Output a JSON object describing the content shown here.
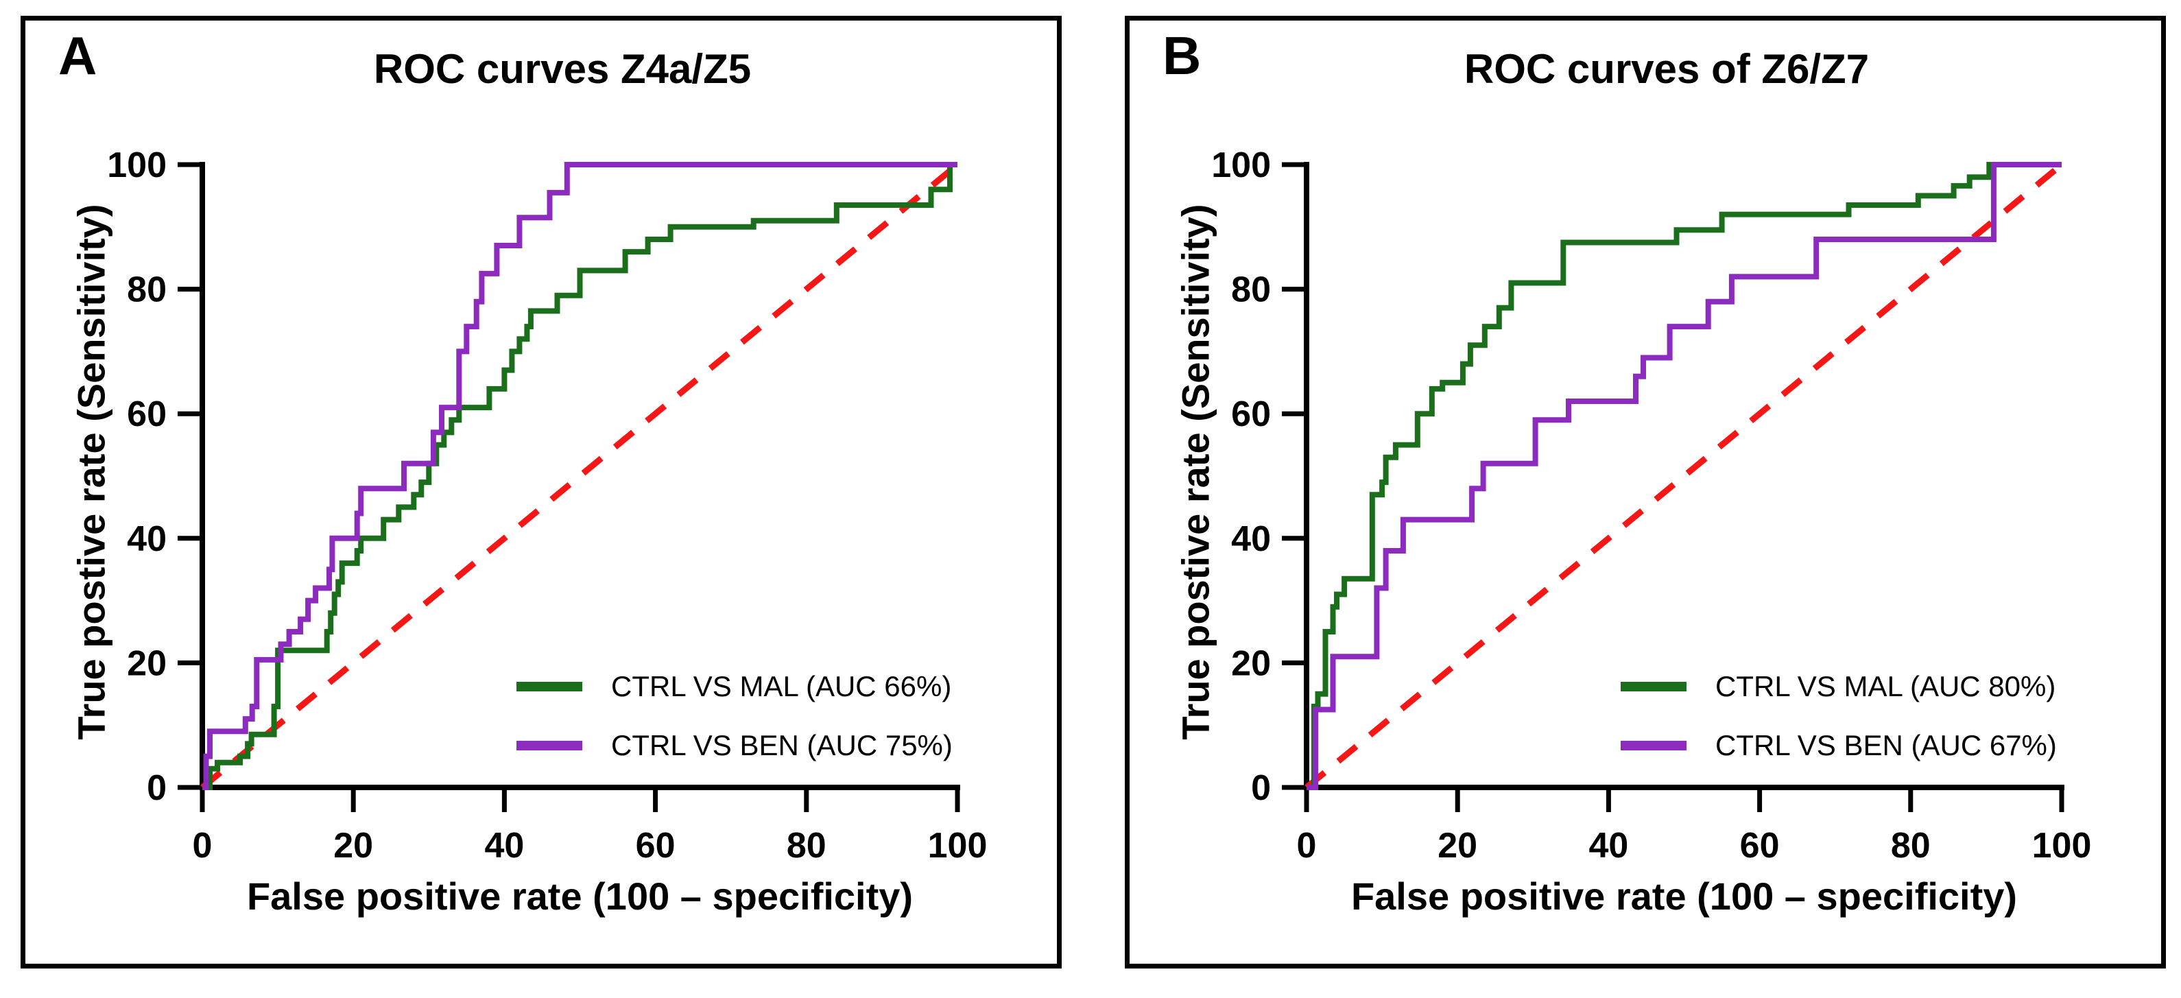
{
  "figure": {
    "background_color": "#ffffff",
    "frame_color": "#000000",
    "diagonal_color": "#f51616",
    "green_color": "#1b6e1b",
    "purple_color": "#8d2bbf"
  },
  "chart_data": [
    {
      "type": "line",
      "panel_label": "A",
      "title": "ROC curves Z4a/Z5",
      "xlabel": "False positive rate (100 – specificity)",
      "ylabel": "True postive rate (Sensitivity)",
      "xlim": [
        0,
        100
      ],
      "ylim": [
        0,
        100
      ],
      "xticks": [
        0,
        20,
        40,
        60,
        80,
        100
      ],
      "yticks": [
        0,
        20,
        40,
        60,
        80,
        100
      ],
      "grid": false,
      "legend_position": "lower right",
      "diagonal": {
        "name": "chance-line",
        "style": "dashed",
        "color": "#f51616",
        "from": [
          0,
          0
        ],
        "to": [
          100,
          100
        ]
      },
      "series": [
        {
          "name": "CTRL VS MAL (AUC 66%)",
          "color": "#1b6e1b",
          "step": true,
          "points": [
            [
              0,
              0
            ],
            [
              1,
              0
            ],
            [
              1,
              3
            ],
            [
              2,
              3
            ],
            [
              2,
              4
            ],
            [
              5,
              4
            ],
            [
              5,
              5
            ],
            [
              6,
              5
            ],
            [
              6,
              7
            ],
            [
              6.5,
              7
            ],
            [
              6.5,
              8.5
            ],
            [
              9.5,
              8.5
            ],
            [
              9.5,
              13
            ],
            [
              10,
              13
            ],
            [
              10,
              22
            ],
            [
              16.5,
              22
            ],
            [
              16.5,
              25
            ],
            [
              17,
              25
            ],
            [
              17,
              28
            ],
            [
              17.5,
              28
            ],
            [
              17.5,
              31
            ],
            [
              18,
              31
            ],
            [
              18,
              33
            ],
            [
              18.5,
              33
            ],
            [
              18.5,
              36
            ],
            [
              20.5,
              36
            ],
            [
              20.5,
              38
            ],
            [
              21,
              38
            ],
            [
              21,
              40
            ],
            [
              24,
              40
            ],
            [
              24,
              43
            ],
            [
              26,
              43
            ],
            [
              26,
              45
            ],
            [
              28,
              45
            ],
            [
              28,
              47
            ],
            [
              29,
              47
            ],
            [
              29,
              49
            ],
            [
              30,
              49
            ],
            [
              30,
              52
            ],
            [
              31,
              52
            ],
            [
              31,
              55
            ],
            [
              32,
              55
            ],
            [
              32,
              57
            ],
            [
              33,
              57
            ],
            [
              33,
              59
            ],
            [
              34,
              59
            ],
            [
              34,
              61
            ],
            [
              38,
              61
            ],
            [
              38,
              64
            ],
            [
              40,
              64
            ],
            [
              40,
              67
            ],
            [
              41,
              67
            ],
            [
              41,
              70
            ],
            [
              42,
              70
            ],
            [
              42,
              72
            ],
            [
              43,
              72
            ],
            [
              43,
              74
            ],
            [
              43.5,
              74
            ],
            [
              43.5,
              76.5
            ],
            [
              47,
              76.5
            ],
            [
              47,
              79
            ],
            [
              50,
              79
            ],
            [
              50,
              83
            ],
            [
              56,
              83
            ],
            [
              56,
              86
            ],
            [
              59,
              86
            ],
            [
              59,
              88
            ],
            [
              62,
              88
            ],
            [
              62,
              90
            ],
            [
              73,
              90
            ],
            [
              73,
              91
            ],
            [
              84,
              91
            ],
            [
              84,
              93.5
            ],
            [
              96.5,
              93.5
            ],
            [
              96.5,
              96
            ],
            [
              99,
              96
            ],
            [
              99,
              100
            ],
            [
              100,
              100
            ]
          ]
        },
        {
          "name": "CTRL VS BEN (AUC 75%)",
          "color": "#8d2bbf",
          "step": true,
          "points": [
            [
              0,
              0
            ],
            [
              0.5,
              0
            ],
            [
              0.5,
              5
            ],
            [
              1,
              5
            ],
            [
              1,
              9
            ],
            [
              5.7,
              9
            ],
            [
              5.7,
              11
            ],
            [
              6.6,
              11
            ],
            [
              6.6,
              13
            ],
            [
              7.2,
              13
            ],
            [
              7.2,
              20.5
            ],
            [
              10.4,
              20.5
            ],
            [
              10.4,
              23
            ],
            [
              11.5,
              23
            ],
            [
              11.5,
              25
            ],
            [
              13,
              25
            ],
            [
              13,
              27
            ],
            [
              14,
              27
            ],
            [
              14,
              30
            ],
            [
              15,
              30
            ],
            [
              15,
              32
            ],
            [
              16.8,
              32
            ],
            [
              16.8,
              35
            ],
            [
              17.2,
              35
            ],
            [
              17.2,
              40
            ],
            [
              20.5,
              40
            ],
            [
              20.5,
              44
            ],
            [
              21,
              44
            ],
            [
              21,
              48
            ],
            [
              26.7,
              48
            ],
            [
              26.7,
              52
            ],
            [
              30.6,
              52
            ],
            [
              30.6,
              57
            ],
            [
              31.7,
              57
            ],
            [
              31.7,
              61
            ],
            [
              34,
              61
            ],
            [
              34,
              70
            ],
            [
              35,
              70
            ],
            [
              35,
              74
            ],
            [
              36.3,
              74
            ],
            [
              36.3,
              78
            ],
            [
              37,
              78
            ],
            [
              37,
              82.5
            ],
            [
              39,
              82.5
            ],
            [
              39,
              87
            ],
            [
              42,
              87
            ],
            [
              42,
              91.5
            ],
            [
              46,
              91.5
            ],
            [
              46,
              95.5
            ],
            [
              48.3,
              95.5
            ],
            [
              48.3,
              100
            ],
            [
              100,
              100
            ]
          ]
        }
      ]
    },
    {
      "type": "line",
      "panel_label": "B",
      "title": "ROC curves of Z6/Z7",
      "xlabel": "False positive rate (100 – specificity)",
      "ylabel": "True postive rate (Sensitivity)",
      "xlim": [
        0,
        100
      ],
      "ylim": [
        0,
        100
      ],
      "xticks": [
        0,
        20,
        40,
        60,
        80,
        100
      ],
      "yticks": [
        0,
        20,
        40,
        60,
        80,
        100
      ],
      "grid": false,
      "legend_position": "lower right",
      "diagonal": {
        "name": "chance-line",
        "style": "dashed",
        "color": "#f51616",
        "from": [
          0,
          0
        ],
        "to": [
          100,
          100
        ]
      },
      "series": [
        {
          "name": "CTRL VS MAL (AUC 80%)",
          "color": "#1b6e1b",
          "step": true,
          "points": [
            [
              0,
              0
            ],
            [
              1,
              0
            ],
            [
              1,
              13
            ],
            [
              1.5,
              13
            ],
            [
              1.5,
              15
            ],
            [
              2.5,
              15
            ],
            [
              2.5,
              25
            ],
            [
              3.5,
              25
            ],
            [
              3.5,
              29
            ],
            [
              4,
              29
            ],
            [
              4,
              31
            ],
            [
              5,
              31
            ],
            [
              5,
              33.5
            ],
            [
              8.7,
              33.5
            ],
            [
              8.7,
              47
            ],
            [
              10,
              47
            ],
            [
              10,
              49
            ],
            [
              10.5,
              49
            ],
            [
              10.5,
              53
            ],
            [
              11.8,
              53
            ],
            [
              11.8,
              55
            ],
            [
              14.7,
              55
            ],
            [
              14.7,
              60
            ],
            [
              16.6,
              60
            ],
            [
              16.6,
              64
            ],
            [
              18,
              64
            ],
            [
              18,
              65
            ],
            [
              20.7,
              65
            ],
            [
              20.7,
              68
            ],
            [
              21.7,
              68
            ],
            [
              21.7,
              71
            ],
            [
              23.6,
              71
            ],
            [
              23.6,
              74
            ],
            [
              25.5,
              74
            ],
            [
              25.5,
              77
            ],
            [
              27.1,
              77
            ],
            [
              27.1,
              81
            ],
            [
              34,
              81
            ],
            [
              34,
              87.5
            ],
            [
              49,
              87.5
            ],
            [
              49,
              89.5
            ],
            [
              55,
              89.5
            ],
            [
              55,
              92
            ],
            [
              71.8,
              92
            ],
            [
              71.8,
              93.5
            ],
            [
              81,
              93.5
            ],
            [
              81,
              95
            ],
            [
              85.7,
              95
            ],
            [
              85.7,
              96.6
            ],
            [
              87.8,
              96.6
            ],
            [
              87.8,
              98
            ],
            [
              90.4,
              98
            ],
            [
              90.4,
              100
            ],
            [
              100,
              100
            ]
          ]
        },
        {
          "name": "CTRL VS BEN (AUC 67%)",
          "color": "#8d2bbf",
          "step": true,
          "points": [
            [
              0,
              0
            ],
            [
              1.2,
              0
            ],
            [
              1.2,
              12.5
            ],
            [
              3.5,
              12.5
            ],
            [
              3.5,
              21
            ],
            [
              9.3,
              21
            ],
            [
              9.3,
              32
            ],
            [
              10.5,
              32
            ],
            [
              10.5,
              38
            ],
            [
              12.8,
              38
            ],
            [
              12.8,
              43
            ],
            [
              21.9,
              43
            ],
            [
              21.9,
              48
            ],
            [
              23.4,
              48
            ],
            [
              23.4,
              52
            ],
            [
              30.3,
              52
            ],
            [
              30.3,
              59
            ],
            [
              34.7,
              59
            ],
            [
              34.7,
              62
            ],
            [
              43.6,
              62
            ],
            [
              43.6,
              66
            ],
            [
              44.6,
              66
            ],
            [
              44.6,
              69
            ],
            [
              48.1,
              69
            ],
            [
              48.1,
              74
            ],
            [
              53.2,
              74
            ],
            [
              53.2,
              78
            ],
            [
              56.3,
              78
            ],
            [
              56.3,
              82
            ],
            [
              67.5,
              82
            ],
            [
              67.5,
              88
            ],
            [
              91,
              88
            ],
            [
              91,
              100
            ],
            [
              100,
              100
            ]
          ]
        }
      ]
    }
  ]
}
